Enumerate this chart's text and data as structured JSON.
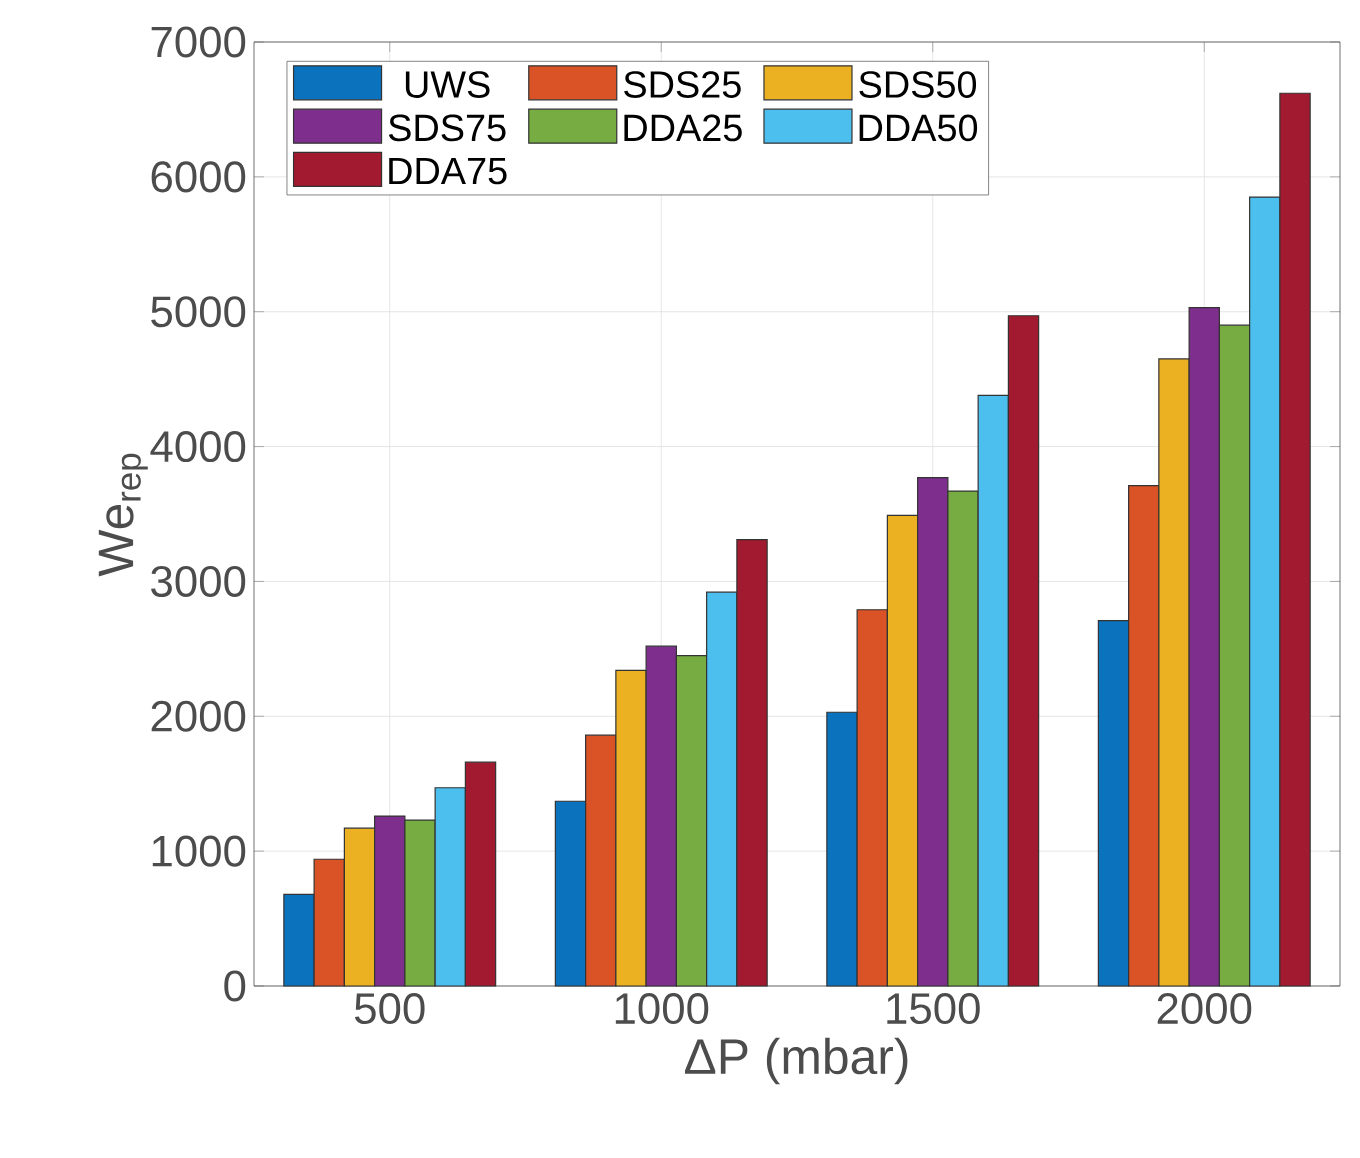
{
  "chart_data": {
    "type": "bar",
    "xlabel": "ΔP (mbar)",
    "ylabel": "We$_{rep}$",
    "categories": [
      "500",
      "1000",
      "1500",
      "2000"
    ],
    "series": [
      {
        "name": "UWS",
        "color": "#0b72bd",
        "values": [
          680,
          1370,
          2030,
          2710
        ]
      },
      {
        "name": "SDS25",
        "color": "#d95326",
        "values": [
          940,
          1860,
          2790,
          3710
        ]
      },
      {
        "name": "SDS50",
        "color": "#ecb122",
        "values": [
          1170,
          2340,
          3490,
          4650
        ]
      },
      {
        "name": "SDS75",
        "color": "#7e2f8e",
        "values": [
          1260,
          2520,
          3770,
          5030
        ]
      },
      {
        "name": "DDA25",
        "color": "#77ac42",
        "values": [
          1230,
          2450,
          3670,
          4900
        ]
      },
      {
        "name": "DDA50",
        "color": "#4dbfee",
        "values": [
          1470,
          2920,
          4380,
          5850
        ]
      },
      {
        "name": "DDA75",
        "color": "#a21a2f",
        "values": [
          1660,
          3310,
          4970,
          6620
        ]
      }
    ],
    "ylim": [
      0,
      7000
    ],
    "yticks": [
      0,
      1000,
      2000,
      3000,
      4000,
      5000,
      6000,
      7000
    ],
    "grid": true,
    "legend": "top left"
  }
}
